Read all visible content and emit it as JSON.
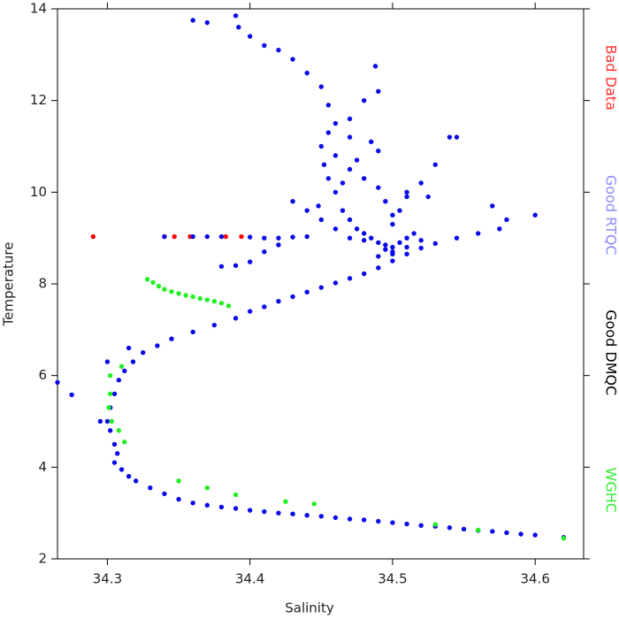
{
  "chart_data": {
    "type": "scatter",
    "xlabel": "Salinity",
    "ylabel": "Temperature",
    "xlim": [
      34.265,
      34.634
    ],
    "ylim": [
      2,
      14
    ],
    "xticks": [
      34.3,
      34.4,
      34.5,
      34.6
    ],
    "yticks": [
      2,
      4,
      6,
      8,
      10,
      12,
      14
    ],
    "legend": "right",
    "series": [
      {
        "name": "Bad Data",
        "color": "#ff0000",
        "label_color": "#ff3030",
        "x": [
          34.29,
          34.34,
          34.347,
          34.358,
          34.383,
          34.394
        ],
        "y": [
          9.03,
          9.03,
          9.03,
          9.03,
          9.03,
          9.03
        ]
      },
      {
        "name": "Good RTQC",
        "color": "#8c8cff",
        "label_color": "#8c8cff",
        "x": [],
        "y": []
      },
      {
        "name": "Good DMQC",
        "color": "#0a0ae6",
        "label_color": "#000000",
        "x": [
          34.62,
          34.6,
          34.59,
          34.58,
          34.57,
          34.56,
          34.55,
          34.54,
          34.53,
          34.52,
          34.51,
          34.5,
          34.49,
          34.48,
          34.47,
          34.46,
          34.45,
          34.44,
          34.43,
          34.42,
          34.41,
          34.4,
          34.39,
          34.38,
          34.37,
          34.36,
          34.35,
          34.34,
          34.33,
          34.32,
          34.315,
          34.31,
          34.305,
          34.307,
          34.305,
          34.302,
          34.3,
          34.302,
          34.305,
          34.308,
          34.312,
          34.318,
          34.325,
          34.335,
          34.345,
          34.36,
          34.375,
          34.39,
          34.4,
          34.41,
          34.42,
          34.43,
          34.44,
          34.45,
          34.46,
          34.47,
          34.48,
          34.49,
          34.5,
          34.51,
          34.52,
          34.53,
          34.545,
          34.56,
          34.575,
          34.6,
          34.57,
          34.58,
          34.36,
          34.37,
          34.39,
          34.392,
          34.4,
          34.41,
          34.42,
          34.43,
          34.44,
          34.45,
          34.455,
          34.46,
          34.47,
          34.488,
          34.49,
          34.48,
          34.545,
          34.54,
          34.53,
          34.34,
          34.36,
          34.37,
          34.38,
          34.4,
          34.41,
          34.42,
          34.43,
          34.44,
          34.38,
          34.39,
          34.4,
          34.41,
          34.42,
          34.265,
          34.275,
          34.3,
          34.295,
          34.315,
          34.45,
          34.452,
          34.455,
          34.46,
          34.448,
          34.465,
          34.47,
          34.475,
          34.48,
          34.485,
          34.49,
          34.495,
          34.5,
          34.505,
          34.51,
          34.515,
          34.5,
          34.495,
          34.49,
          34.48,
          34.47,
          34.46,
          34.455,
          34.5,
          34.505,
          34.51,
          34.52,
          34.49,
          34.485,
          34.475,
          34.465,
          34.45,
          34.46,
          34.47,
          34.48,
          34.495,
          34.5,
          34.51,
          34.52,
          34.49,
          34.5,
          34.44,
          34.43,
          34.47,
          34.51,
          34.525
        ],
        "y": [
          2.47,
          2.52,
          2.54,
          2.57,
          2.6,
          2.62,
          2.65,
          2.68,
          2.71,
          2.73,
          2.76,
          2.79,
          2.82,
          2.85,
          2.87,
          2.9,
          2.93,
          2.95,
          2.98,
          3.0,
          3.03,
          3.06,
          3.1,
          3.13,
          3.17,
          3.22,
          3.3,
          3.42,
          3.55,
          3.7,
          3.8,
          3.95,
          4.1,
          4.3,
          4.5,
          4.8,
          5.0,
          5.3,
          5.6,
          5.9,
          6.1,
          6.3,
          6.5,
          6.65,
          6.8,
          6.95,
          7.1,
          7.25,
          7.4,
          7.5,
          7.62,
          7.72,
          7.82,
          7.92,
          8.02,
          8.12,
          8.22,
          8.35,
          8.5,
          8.65,
          8.78,
          8.88,
          9.0,
          9.1,
          9.2,
          9.5,
          9.7,
          9.4,
          13.75,
          13.7,
          13.85,
          13.6,
          13.4,
          13.2,
          13.1,
          12.9,
          12.6,
          12.3,
          11.9,
          11.5,
          11.2,
          12.75,
          12.2,
          12.0,
          11.2,
          11.2,
          10.6,
          9.03,
          9.03,
          9.03,
          9.03,
          9.02,
          9.0,
          9.0,
          9.02,
          9.03,
          8.38,
          8.4,
          8.48,
          8.7,
          8.85,
          5.85,
          5.58,
          6.3,
          5.0,
          6.6,
          11.0,
          10.6,
          10.3,
          10.0,
          9.7,
          9.6,
          9.4,
          9.2,
          9.1,
          9.0,
          8.9,
          8.85,
          8.8,
          8.9,
          9.0,
          9.1,
          9.5,
          9.8,
          10.1,
          10.3,
          10.5,
          10.8,
          11.3,
          9.3,
          9.6,
          9.9,
          10.2,
          10.9,
          11.1,
          10.7,
          10.2,
          9.4,
          9.2,
          9.0,
          8.95,
          8.75,
          8.7,
          8.8,
          8.95,
          8.6,
          8.65,
          9.6,
          9.8,
          11.6,
          10.0,
          9.9
        ]
      },
      {
        "name": "WGHC",
        "color": "#22ee22",
        "label_color": "#33ee33",
        "x": [
          34.328,
          34.332,
          34.336,
          34.34,
          34.345,
          34.35,
          34.355,
          34.36,
          34.365,
          34.37,
          34.375,
          34.38,
          34.385,
          34.31,
          34.302,
          34.302,
          34.301,
          34.303,
          34.308,
          34.312,
          34.35,
          34.37,
          34.39,
          34.425,
          34.445,
          34.53,
          34.56,
          34.62
        ],
        "y": [
          8.1,
          8.03,
          7.95,
          7.88,
          7.83,
          7.79,
          7.75,
          7.72,
          7.68,
          7.65,
          7.62,
          7.58,
          7.52,
          6.2,
          6.0,
          5.6,
          5.3,
          5.0,
          4.8,
          4.55,
          3.7,
          3.55,
          3.4,
          3.25,
          3.2,
          2.75,
          2.63,
          2.45
        ]
      }
    ]
  }
}
